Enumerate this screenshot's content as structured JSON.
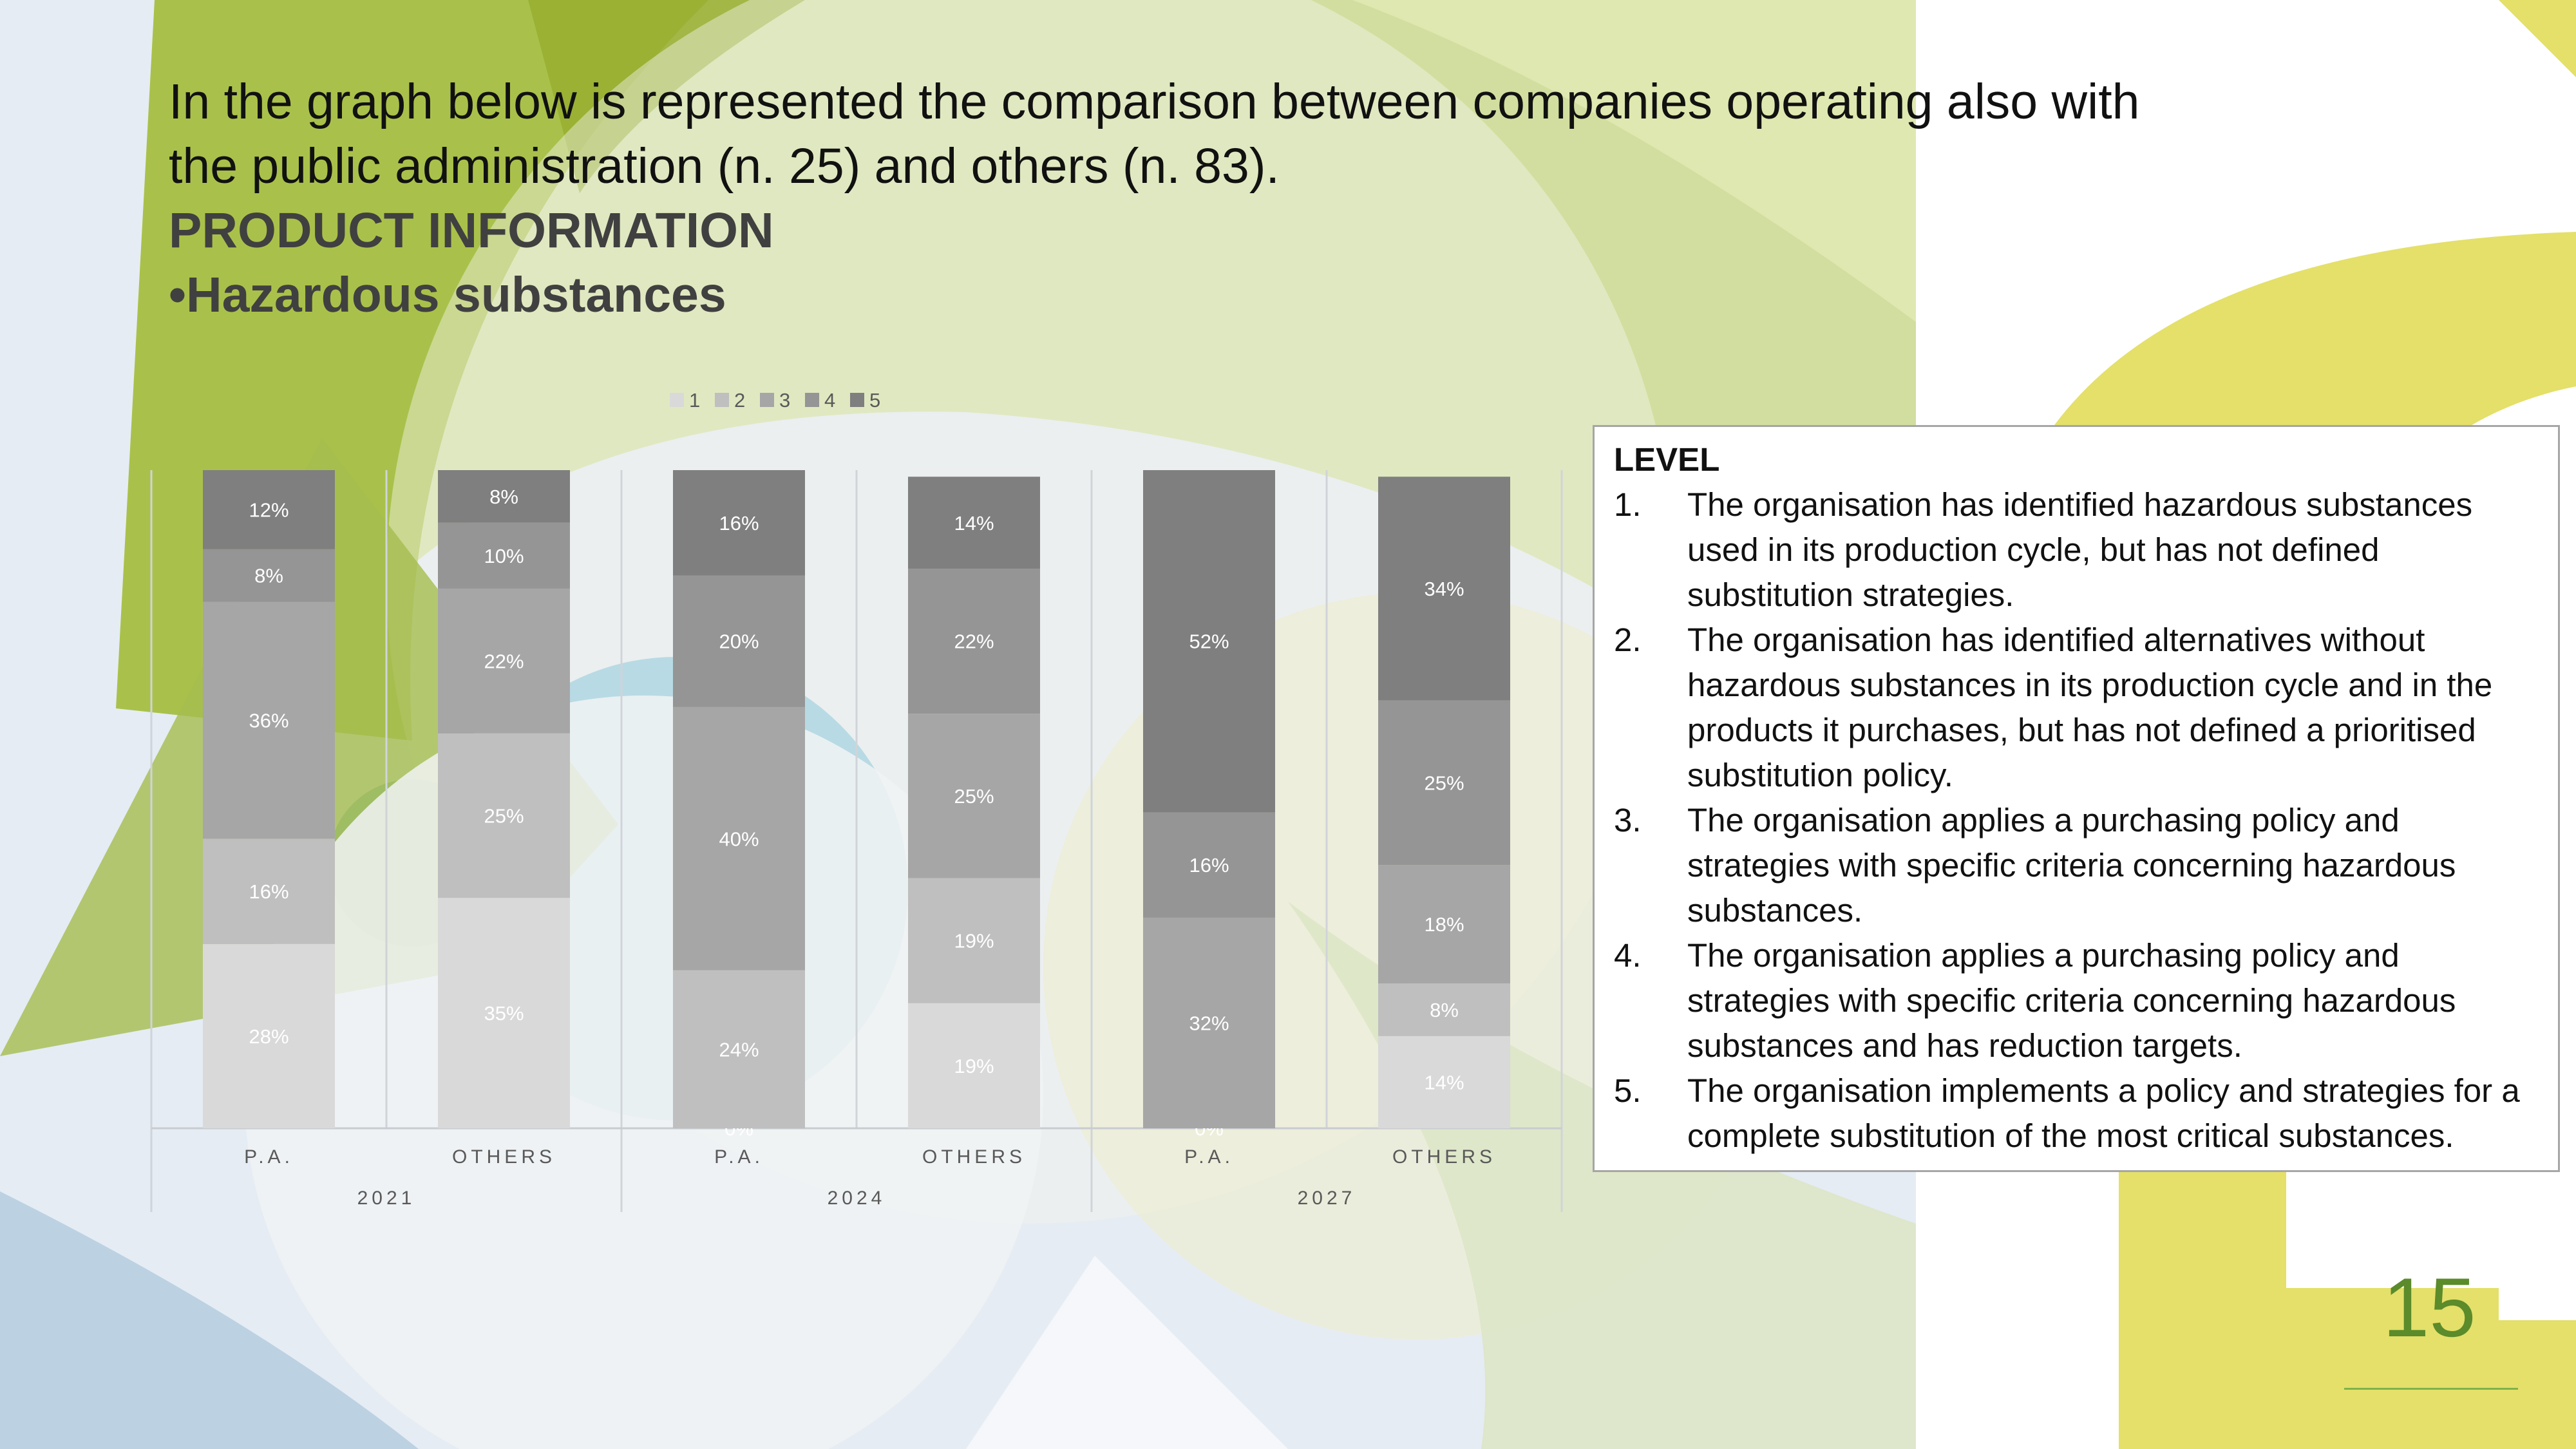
{
  "slide": {
    "intro_line1": "In the graph below is represented the comparison between companies operating also with",
    "intro_line2": "the public administration (n. 25) and others (n. 83).",
    "section_title": "PRODUCT INFORMATION",
    "subsection_title": "•Hazardous substances",
    "page_number": "15"
  },
  "legend_box": {
    "title": "LEVEL",
    "items": [
      {
        "num": "1.",
        "text": "The organisation has identified hazardous substances used in its production cycle, but has not defined substitution strategies."
      },
      {
        "num": "2.",
        "text": "The organisation has identified alternatives without hazardous substances in its production cycle and in the products it purchases, but has not defined a prioritised substitution policy."
      },
      {
        "num": "3.",
        "text": "The organisation applies a purchasing policy and strategies with specific criteria concerning hazardous substances."
      },
      {
        "num": "4.",
        "text": "The organisation applies a purchasing policy and strategies with specific criteria concerning hazardous substances and has reduction targets."
      },
      {
        "num": "5.",
        "text": "The organisation implements a policy and strategies for a complete substitution of the most critical substances."
      }
    ]
  },
  "chart_data": {
    "type": "bar",
    "stacked": true,
    "percent_stacked": true,
    "legend_position": "top",
    "gridlines": false,
    "categories": [
      "P.A.",
      "OTHERS",
      "P.A.",
      "OTHERS",
      "P.A.",
      "OTHERS"
    ],
    "groups": [
      {
        "label": "2021",
        "categories": [
          "P.A.",
          "OTHERS"
        ]
      },
      {
        "label": "2024",
        "categories": [
          "P.A.",
          "OTHERS"
        ]
      },
      {
        "label": "2027",
        "categories": [
          "P.A.",
          "OTHERS"
        ]
      }
    ],
    "series": [
      {
        "name": "1",
        "color": "#d9d9d9",
        "values": [
          28,
          35,
          0,
          19,
          0,
          14
        ]
      },
      {
        "name": "2",
        "color": "#bfbfbf",
        "values": [
          16,
          25,
          24,
          19,
          0,
          8
        ]
      },
      {
        "name": "3",
        "color": "#a6a6a6",
        "values": [
          36,
          22,
          40,
          25,
          32,
          18
        ]
      },
      {
        "name": "4",
        "color": "#959595",
        "values": [
          8,
          10,
          20,
          22,
          16,
          25
        ]
      },
      {
        "name": "5",
        "color": "#7f7f7f",
        "values": [
          12,
          8,
          16,
          14,
          52,
          34
        ]
      }
    ],
    "data_labels": [
      [
        "28%",
        "16%",
        "36%",
        "8%",
        "12%"
      ],
      [
        "35%",
        "25%",
        "22%",
        "10%",
        "8%"
      ],
      [
        "0%",
        "24%",
        "40%",
        "20%",
        "16%"
      ],
      [
        "19%",
        "19%",
        "25%",
        "22%",
        "14%"
      ],
      [
        "0%",
        "",
        "32%",
        "16%",
        "52%"
      ],
      [
        "14%",
        "8%",
        "18%",
        "25%",
        "34%"
      ]
    ],
    "ylim": [
      0,
      100
    ]
  },
  "colors": {
    "accent_green": "#5b8b2a",
    "accent_yellow": "#e4e06a",
    "olive": "#a9c14a"
  }
}
